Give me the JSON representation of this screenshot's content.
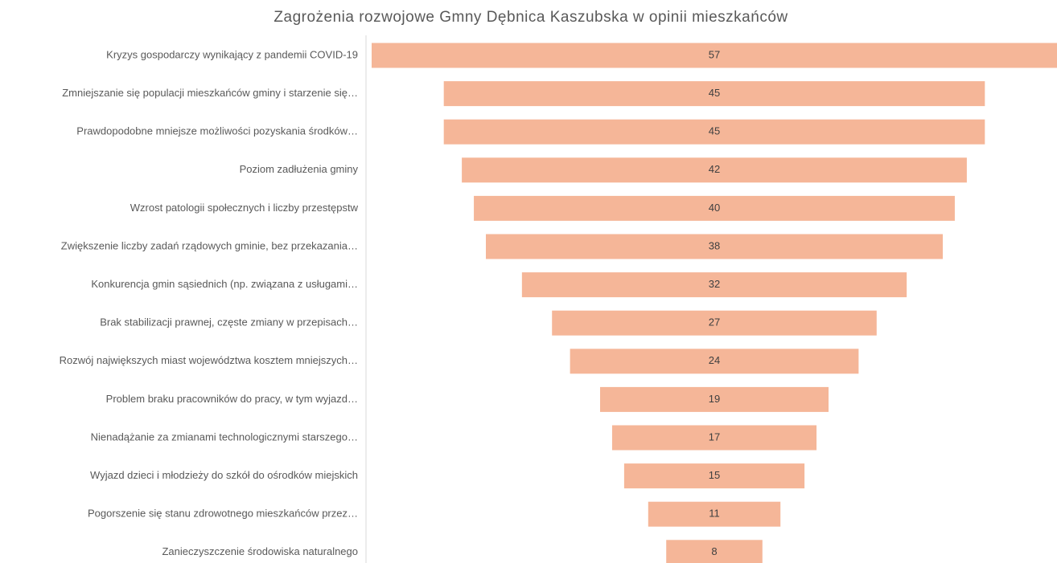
{
  "chart_data": {
    "type": "funnel",
    "title": "Zagrożenia rozwojowe Gmny Dębnica Kaszubska w opinii mieszkańców",
    "categories": [
      "Kryzys gospodarczy wynikający z pandemii COVID-19",
      "Zmniejszanie się populacji mieszkańców gminy i starzenie się…",
      "Prawdopodobne mniejsze możliwości pozyskania środków…",
      "Poziom zadłużenia gminy",
      "Wzrost patologii społecznych i liczby przestępstw",
      "Zwiększenie liczby zadań rządowych gminie, bez przekazania…",
      "Konkurencja gmin sąsiednich (np. związana z usługami…",
      "Brak stabilizacji prawnej, częste zmiany w przepisach…",
      "Rozwój największych miast województwa kosztem mniejszych…",
      "Problem braku pracowników do pracy, w tym wyjazd…",
      "Nienadążanie za zmianami technologicznymi starszego…",
      "Wyjazd dzieci i młodzieży do szkół do ośrodków miejskich",
      "Pogorszenie się stanu zdrowotnego mieszkańców przez…",
      "Zanieczyszczenie środowiska naturalnego"
    ],
    "values": [
      57,
      45,
      45,
      42,
      40,
      38,
      32,
      27,
      24,
      19,
      17,
      15,
      11,
      8
    ],
    "color": "#f5b698"
  }
}
